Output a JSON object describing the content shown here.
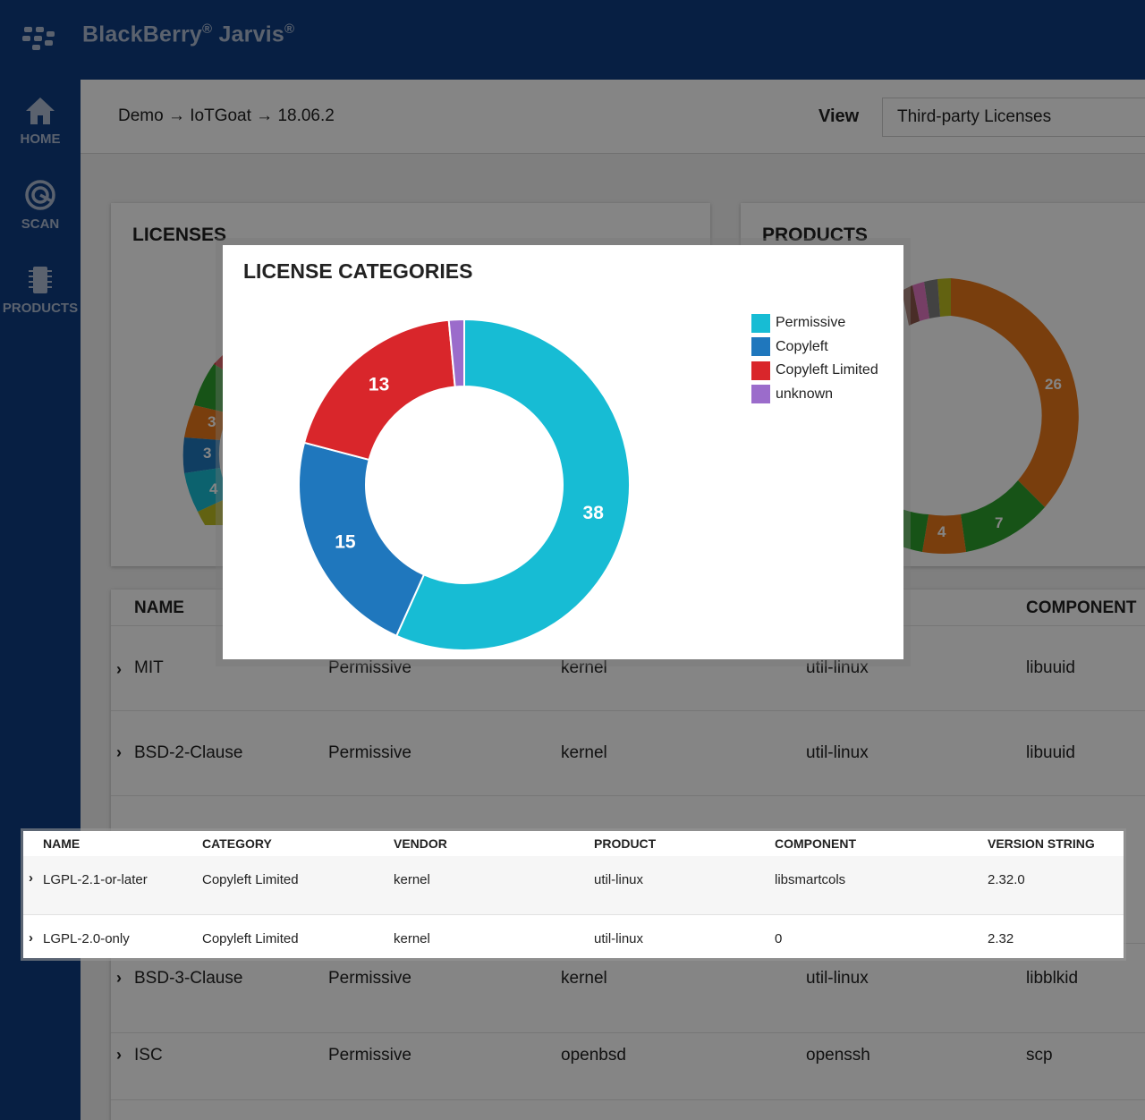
{
  "app": {
    "brand": "BlackBerry",
    "product": "Jarvis",
    "reg_mark": "®",
    "accent": "#0e3d80"
  },
  "sidebar": {
    "items": [
      {
        "label": "HOME",
        "icon": "home-icon"
      },
      {
        "label": "SCAN",
        "icon": "scan-icon"
      },
      {
        "label": "PRODUCTS",
        "icon": "chip-icon"
      }
    ]
  },
  "header": {
    "breadcrumb": "Demo → IoTGoat → 18.06.2",
    "view_label": "View",
    "view_value": "Third-party Licenses"
  },
  "cards": {
    "licenses_title": "LICENSES",
    "products_title": "PRODUCTS",
    "licenses_visible_labels": [
      "3",
      "3",
      "4"
    ],
    "products_visible_labels": [
      "26",
      "7",
      "4"
    ]
  },
  "table": {
    "headers": {
      "name": "NAME",
      "component": "COMPONENT"
    },
    "rows": [
      {
        "name": "MIT",
        "category": "Permissive",
        "vendor": "kernel",
        "product": "util-linux",
        "component": "libuuid"
      },
      {
        "name": "BSD-2-Clause",
        "category": "Permissive",
        "vendor": "kernel",
        "product": "util-linux",
        "component": "libuuid"
      },
      {
        "name": "BSD-3-Clause",
        "category": "Permissive",
        "vendor": "kernel",
        "product": "util-linux",
        "component": "libblkid"
      },
      {
        "name": "ISC",
        "category": "Permissive",
        "vendor": "openbsd",
        "product": "openssh",
        "component": "scp"
      }
    ]
  },
  "modal": {
    "title": "LICENSE CATEGORIES"
  },
  "chart_data": {
    "type": "pie",
    "donut": true,
    "categories": [
      "Permissive",
      "Copyleft",
      "Copyleft Limited",
      "unknown"
    ],
    "values": [
      38,
      15,
      13,
      1
    ],
    "data_labels": [
      "38",
      "15",
      "13",
      ""
    ],
    "colors": [
      "#17bcd4",
      "#1f77bd",
      "#d9262b",
      "#9b6ccb"
    ],
    "legend_position": "top-right"
  },
  "strip": {
    "headers": [
      "NAME",
      "CATEGORY",
      "VENDOR",
      "PRODUCT",
      "COMPONENT",
      "VERSION STRING"
    ],
    "rows": [
      {
        "name": "LGPL-2.1-or-later",
        "category": "Copyleft Limited",
        "vendor": "kernel",
        "product": "util-linux",
        "component": "libsmartcols",
        "version": "2.32.0"
      },
      {
        "name": "LGPL-2.0-only",
        "category": "Copyleft Limited",
        "vendor": "kernel",
        "product": "util-linux",
        "component": "0",
        "version": "2.32"
      }
    ]
  }
}
